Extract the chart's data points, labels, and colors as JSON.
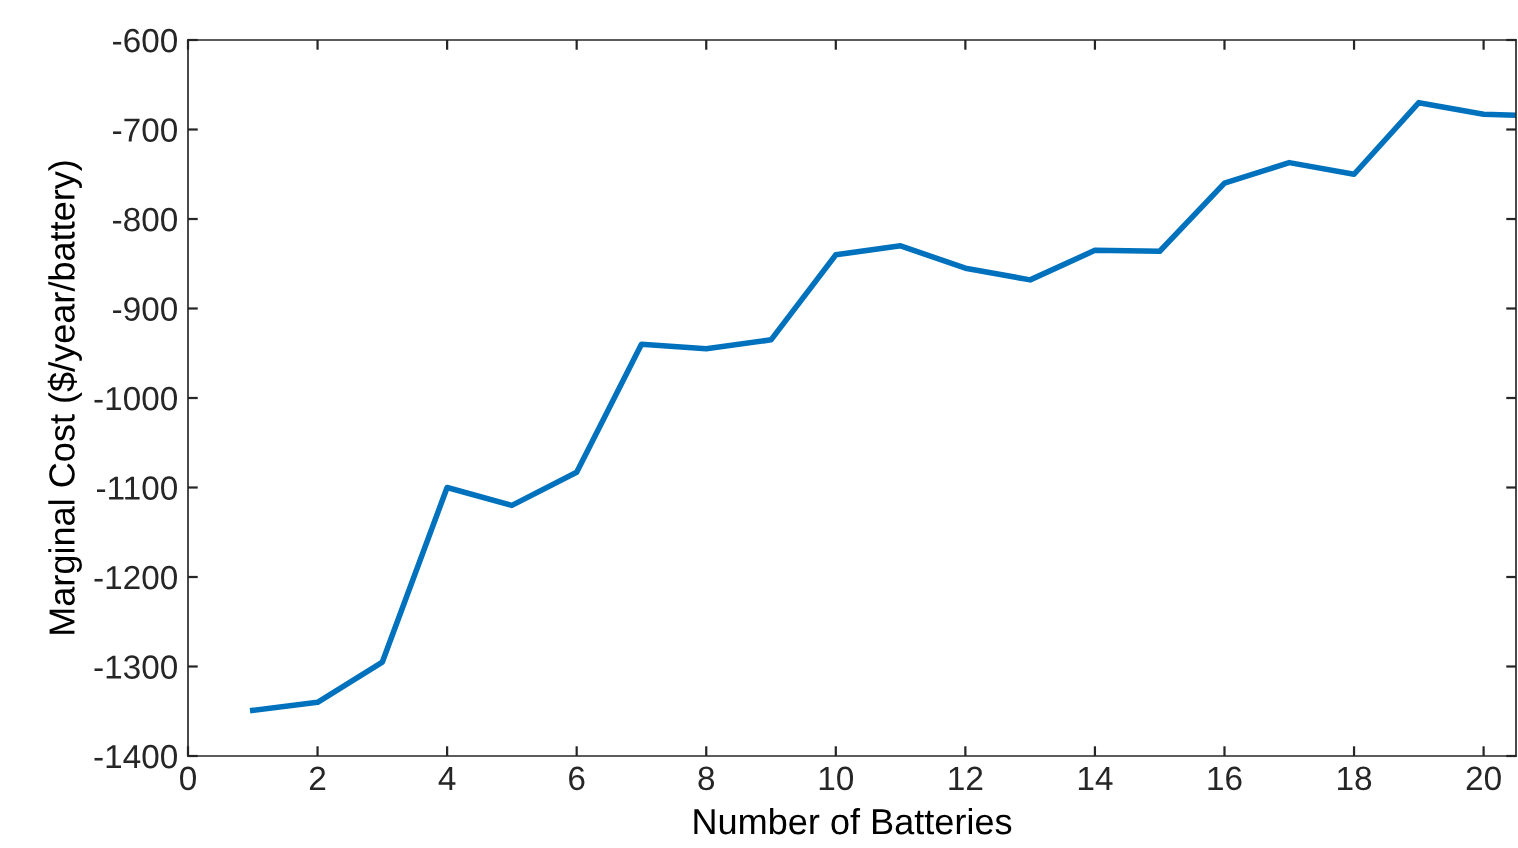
{
  "chart_data": {
    "type": "line",
    "xlabel": "Number of Batteries",
    "ylabel": "Marginal Cost ($/year/battery)",
    "x": [
      1,
      2,
      3,
      4,
      5,
      6,
      7,
      8,
      9,
      10,
      11,
      12,
      13,
      14,
      15,
      16,
      17,
      18,
      19,
      20,
      20.5
    ],
    "series": [
      {
        "color": "#0072bd",
        "values": [
          -1349,
          -1340,
          -1295,
          -1100,
          -1120,
          -1083,
          -940,
          -945,
          -935,
          -840,
          -830,
          -855,
          -868,
          -835,
          -836,
          -760,
          -737,
          -750,
          -670,
          -683,
          -684
        ]
      }
    ],
    "xlim": [
      0,
      20.5
    ],
    "xticks": [
      0,
      2,
      4,
      6,
      8,
      10,
      12,
      14,
      16,
      18,
      20
    ],
    "ylim": [
      -1400,
      -600
    ],
    "yticks": [
      -1400,
      -1300,
      -1200,
      -1100,
      -1000,
      -900,
      -800,
      -700,
      -600
    ],
    "grid": false,
    "legend": false,
    "marker": "none",
    "line_style": "solid"
  }
}
